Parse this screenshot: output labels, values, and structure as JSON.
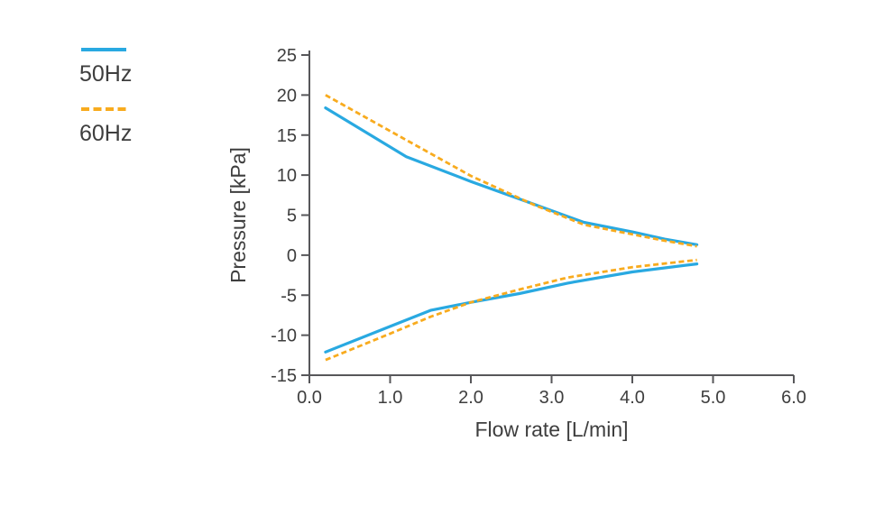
{
  "chart_data": {
    "type": "line",
    "title": "",
    "xlabel": "Flow rate [L/min]",
    "ylabel": "Pressure [kPa]",
    "xlim": [
      0.0,
      6.0
    ],
    "ylim": [
      -15,
      25
    ],
    "x_ticks": [
      {
        "value": 0,
        "label": "0.0"
      },
      {
        "value": 1,
        "label": "1.0"
      },
      {
        "value": 2,
        "label": "2.0"
      },
      {
        "value": 3,
        "label": "3.0"
      },
      {
        "value": 4,
        "label": "4.0"
      },
      {
        "value": 5,
        "label": "5.0"
      },
      {
        "value": 6,
        "label": "6.0"
      }
    ],
    "y_ticks": [
      {
        "value": 25,
        "label": "25"
      },
      {
        "value": 20,
        "label": "20"
      },
      {
        "value": 15,
        "label": "15"
      },
      {
        "value": 10,
        "label": "10"
      },
      {
        "value": 5,
        "label": "5"
      },
      {
        "value": 0,
        "label": "0"
      },
      {
        "value": -5,
        "label": "-5"
      },
      {
        "value": -10,
        "label": "-10"
      },
      {
        "value": -15,
        "label": "-15"
      }
    ],
    "grid": false,
    "legend_position": "outside top-left",
    "series": [
      {
        "name": "50Hz",
        "color": "#29a9e1",
        "style": "solid",
        "branches": [
          {
            "x": [
              0.2,
              1.2,
              2.0,
              2.8,
              3.4,
              4.0,
              4.4,
              4.8
            ],
            "y": [
              18.4,
              12.3,
              9.2,
              6.3,
              4.1,
              2.9,
              2.0,
              1.3
            ]
          },
          {
            "x": [
              0.2,
              1.0,
              1.5,
              2.0,
              2.6,
              3.2,
              4.0,
              4.8
            ],
            "y": [
              -12.1,
              -8.9,
              -6.9,
              -5.9,
              -4.8,
              -3.5,
              -2.1,
              -1.1
            ]
          }
        ]
      },
      {
        "name": "60Hz",
        "color": "#f8ab1e",
        "style": "dashed",
        "branches": [
          {
            "x": [
              0.2,
              1.0,
              2.0,
              2.8,
              3.4,
              4.0,
              4.4,
              4.8
            ],
            "y": [
              20.0,
              15.5,
              9.9,
              6.2,
              3.8,
              2.6,
              1.8,
              1.1
            ]
          },
          {
            "x": [
              0.2,
              1.0,
              1.5,
              2.0,
              2.6,
              3.2,
              4.0,
              4.8
            ],
            "y": [
              -13.1,
              -9.8,
              -7.7,
              -5.9,
              -4.3,
              -2.8,
              -1.5,
              -0.6
            ]
          }
        ]
      }
    ]
  },
  "colors": {
    "text": "#3e3e3e",
    "axis": "#57575a",
    "blue_series": "#29a9e1",
    "orange_series": "#f8ab1e"
  }
}
